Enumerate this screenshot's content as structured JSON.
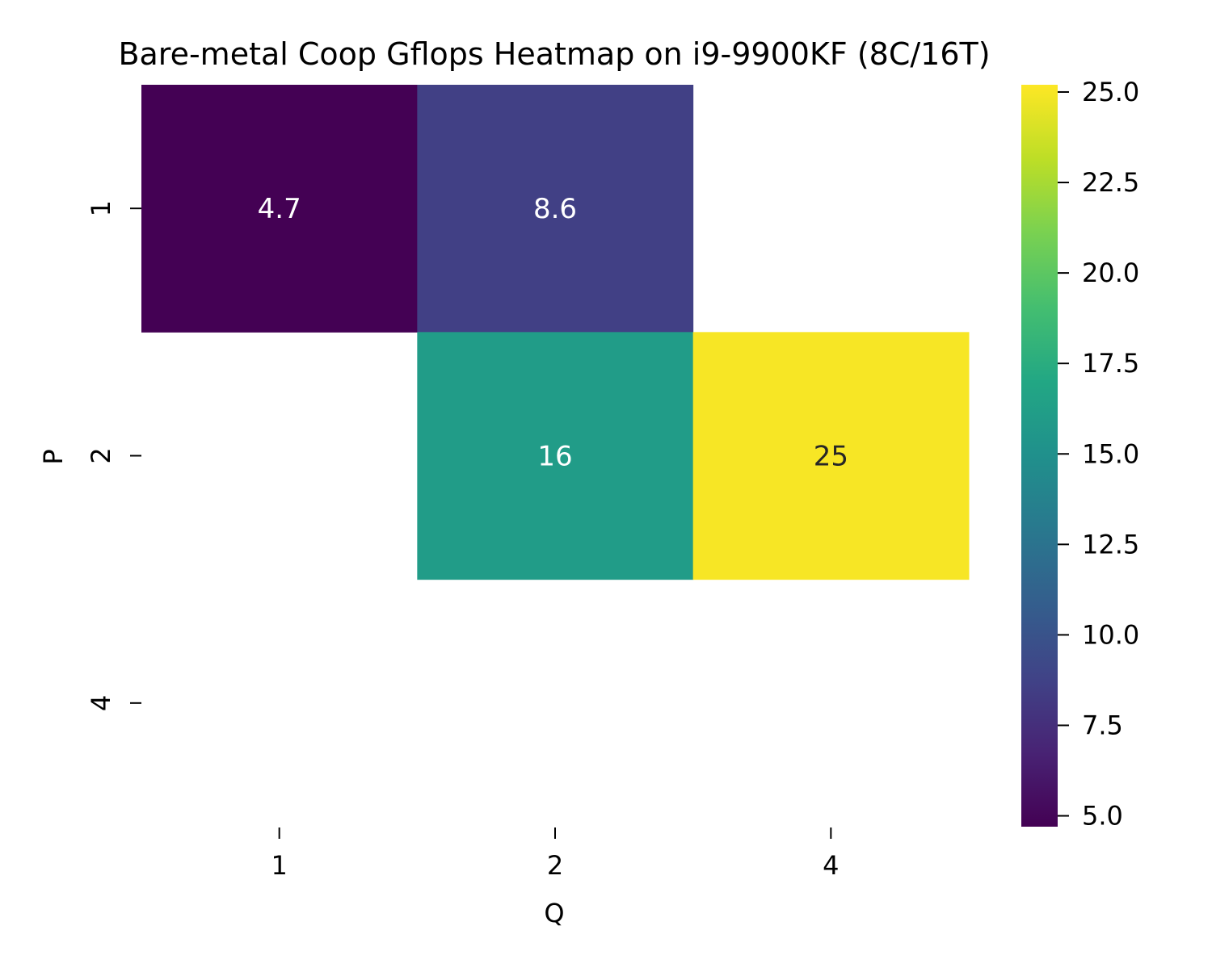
{
  "chart_data": {
    "type": "heatmap",
    "title": "Bare-metal Coop Gflops Heatmap on i9-9900KF (8C/16T)",
    "xlabel": "Q",
    "ylabel": "P",
    "x_categories": [
      "1",
      "2",
      "4"
    ],
    "y_categories": [
      "1",
      "2",
      "4"
    ],
    "values": [
      [
        4.7,
        8.6,
        null
      ],
      [
        null,
        16,
        25
      ],
      [
        null,
        null,
        null
      ]
    ],
    "value_labels": [
      [
        "4.7",
        "8.6",
        ""
      ],
      [
        "",
        "16",
        "25"
      ],
      [
        "",
        "",
        ""
      ]
    ],
    "colormap": "viridis",
    "colorbar": {
      "min": 4.7,
      "max": 25.2,
      "ticks": [
        5.0,
        7.5,
        10.0,
        12.5,
        15.0,
        17.5,
        20.0,
        22.5,
        25.0
      ],
      "tick_labels": [
        "5.0",
        "7.5",
        "10.0",
        "12.5",
        "15.0",
        "17.5",
        "20.0",
        "22.5",
        "25.0"
      ]
    },
    "missing_color": "#ffffff",
    "annotation_colors": {
      "light": "#ffffff",
      "dark": "#262626"
    }
  }
}
